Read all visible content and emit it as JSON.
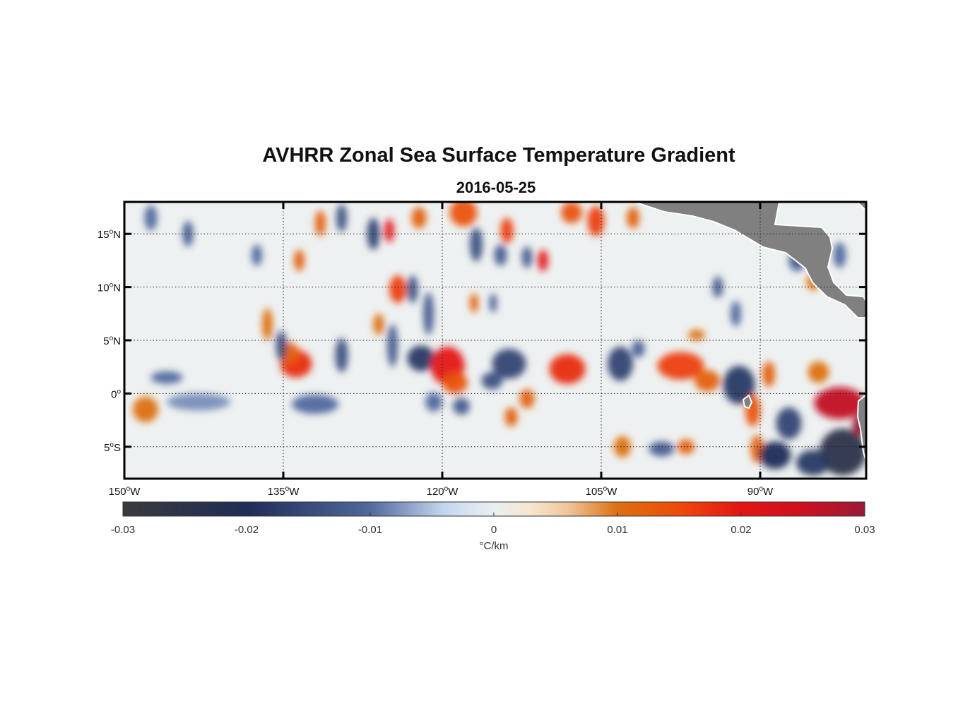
{
  "chart_data": {
    "type": "heatmap",
    "title": "AVHRR Zonal Sea Surface Temperature Gradient",
    "subtitle": "2016-05-25",
    "lon_range": [
      -150,
      -80
    ],
    "lat_range": [
      -8,
      18
    ],
    "x_ticks": [
      {
        "value": -150,
        "label": "150",
        "suffix": "W"
      },
      {
        "value": -135,
        "label": "135",
        "suffix": "W"
      },
      {
        "value": -120,
        "label": "120",
        "suffix": "W"
      },
      {
        "value": -105,
        "label": "105",
        "suffix": "W"
      },
      {
        "value": -90,
        "label": "90",
        "suffix": "W"
      }
    ],
    "y_ticks": [
      {
        "value": 15,
        "label": "15",
        "suffix": "N"
      },
      {
        "value": 10,
        "label": "10",
        "suffix": "N"
      },
      {
        "value": 5,
        "label": "5",
        "suffix": "N"
      },
      {
        "value": 0,
        "label": "0",
        "suffix": ""
      },
      {
        "value": -5,
        "label": "5",
        "suffix": "S"
      }
    ],
    "degree_symbol": "o",
    "grid": "dotted",
    "colorbar": {
      "range": [
        -0.03,
        0.03
      ],
      "ticks": [
        {
          "value": -0.03,
          "label": "-0.03"
        },
        {
          "value": -0.02,
          "label": "-0.02"
        },
        {
          "value": -0.01,
          "label": "-0.01"
        },
        {
          "value": 0,
          "label": "0"
        },
        {
          "value": 0.01,
          "label": "0.01"
        },
        {
          "value": 0.02,
          "label": "0.02"
        },
        {
          "value": 0.03,
          "label": "0.03"
        }
      ],
      "label": "°C/km",
      "stops": [
        {
          "value": -0.03,
          "color": "#3a3a3e"
        },
        {
          "value": -0.02,
          "color": "#1f2d56"
        },
        {
          "value": -0.01,
          "color": "#51699e"
        },
        {
          "value": -0.004,
          "color": "#c4d7ef"
        },
        {
          "value": 0,
          "color": "#eaf0f2"
        },
        {
          "value": 0.003,
          "color": "#f7e6cc"
        },
        {
          "value": 0.006,
          "color": "#f0c59a"
        },
        {
          "value": 0.01,
          "color": "#dc7010"
        },
        {
          "value": 0.015,
          "color": "#ee4a0a"
        },
        {
          "value": 0.02,
          "color": "#e41414"
        },
        {
          "value": 0.025,
          "color": "#cc1020"
        },
        {
          "value": 0.03,
          "color": "#9c1838"
        }
      ]
    },
    "features": [
      {
        "lon": -133.8,
        "lat": 2.8,
        "value": 0.018,
        "rlon": 1.5,
        "rlat": 1.3
      },
      {
        "lon": -134.5,
        "lat": 3.8,
        "value": 0.012,
        "rlon": 1.0,
        "rlat": 1.0
      },
      {
        "lon": -135.2,
        "lat": 4.5,
        "value": -0.014,
        "rlon": 0.5,
        "rlat": 1.4
      },
      {
        "lon": -129.5,
        "lat": 3.6,
        "value": -0.014,
        "rlon": 0.6,
        "rlat": 1.6
      },
      {
        "lon": -124.7,
        "lat": 4.5,
        "value": -0.012,
        "rlon": 0.5,
        "rlat": 2.0
      },
      {
        "lon": -122.0,
        "lat": 3.3,
        "value": -0.018,
        "rlon": 1.3,
        "rlat": 1.2
      },
      {
        "lon": -119.5,
        "lat": 2.6,
        "value": 0.02,
        "rlon": 1.6,
        "rlat": 1.8
      },
      {
        "lon": -118.8,
        "lat": 1.0,
        "value": 0.014,
        "rlon": 1.2,
        "rlat": 1.0
      },
      {
        "lon": -118.2,
        "lat": -1.2,
        "value": -0.012,
        "rlon": 0.8,
        "rlat": 0.8
      },
      {
        "lon": -113.7,
        "lat": 2.8,
        "value": -0.016,
        "rlon": 1.6,
        "rlat": 1.4
      },
      {
        "lon": -115.3,
        "lat": 1.2,
        "value": -0.014,
        "rlon": 1.0,
        "rlat": 0.8
      },
      {
        "lon": -108.2,
        "lat": 2.3,
        "value": 0.018,
        "rlon": 1.7,
        "rlat": 1.4
      },
      {
        "lon": -103.2,
        "lat": 2.8,
        "value": -0.016,
        "rlon": 1.2,
        "rlat": 1.6
      },
      {
        "lon": -101.5,
        "lat": 4.2,
        "value": -0.012,
        "rlon": 0.6,
        "rlat": 0.8
      },
      {
        "lon": -97.5,
        "lat": 2.6,
        "value": 0.016,
        "rlon": 2.2,
        "rlat": 1.3
      },
      {
        "lon": -95.0,
        "lat": 1.2,
        "value": 0.012,
        "rlon": 1.2,
        "rlat": 1.0
      },
      {
        "lon": -92.0,
        "lat": 0.8,
        "value": -0.018,
        "rlon": 1.5,
        "rlat": 1.8
      },
      {
        "lon": -90.7,
        "lat": -1.6,
        "value": 0.014,
        "rlon": 0.7,
        "rlat": 1.5
      },
      {
        "lon": -89.2,
        "lat": 1.8,
        "value": 0.012,
        "rlon": 0.6,
        "rlat": 1.2
      },
      {
        "lon": -90.3,
        "lat": -5.2,
        "value": 0.012,
        "rlon": 0.6,
        "rlat": 1.3
      },
      {
        "lon": -87.3,
        "lat": -2.8,
        "value": -0.016,
        "rlon": 1.2,
        "rlat": 1.5
      },
      {
        "lon": -88.6,
        "lat": -5.8,
        "value": -0.02,
        "rlon": 1.5,
        "rlat": 1.3
      },
      {
        "lon": -82.5,
        "lat": -0.9,
        "value": 0.026,
        "rlon": 2.4,
        "rlat": 1.5
      },
      {
        "lon": -82.2,
        "lat": -5.5,
        "value": -0.025,
        "rlon": 2.2,
        "rlat": 2.2
      },
      {
        "lon": -85.0,
        "lat": -6.5,
        "value": -0.018,
        "rlon": 1.6,
        "rlat": 1.2
      },
      {
        "lon": -84.5,
        "lat": 2.0,
        "value": 0.01,
        "rlon": 1.0,
        "rlat": 1.0
      },
      {
        "lon": -80.6,
        "lat": -3.0,
        "value": 0.03,
        "rlon": 0.7,
        "rlat": 1.0
      },
      {
        "lon": -125.0,
        "lat": 15.3,
        "value": 0.02,
        "rlon": 0.45,
        "rlat": 1.1
      },
      {
        "lon": -126.5,
        "lat": 15.0,
        "value": -0.016,
        "rlon": 0.6,
        "rlat": 1.5
      },
      {
        "lon": -124.2,
        "lat": 9.8,
        "value": 0.016,
        "rlon": 0.8,
        "rlat": 1.3
      },
      {
        "lon": -122.8,
        "lat": 9.8,
        "value": -0.014,
        "rlon": 0.5,
        "rlat": 1.3
      },
      {
        "lon": -122.2,
        "lat": 16.5,
        "value": 0.012,
        "rlon": 0.7,
        "rlat": 1.0
      },
      {
        "lon": -118.0,
        "lat": 17.0,
        "value": 0.014,
        "rlon": 1.3,
        "rlat": 1.3
      },
      {
        "lon": -113.9,
        "lat": 15.3,
        "value": 0.016,
        "rlon": 0.6,
        "rlat": 1.2
      },
      {
        "lon": -114.5,
        "lat": 13.0,
        "value": -0.012,
        "rlon": 0.6,
        "rlat": 1.0
      },
      {
        "lon": -112.0,
        "lat": 12.8,
        "value": -0.012,
        "rlon": 0.5,
        "rlat": 1.0
      },
      {
        "lon": -110.5,
        "lat": 12.5,
        "value": 0.02,
        "rlon": 0.5,
        "rlat": 1.0
      },
      {
        "lon": -116.8,
        "lat": 14.0,
        "value": -0.014,
        "rlon": 0.6,
        "rlat": 1.6
      },
      {
        "lon": -129.5,
        "lat": 16.5,
        "value": -0.014,
        "rlon": 0.5,
        "rlat": 1.3
      },
      {
        "lon": -131.5,
        "lat": 16.0,
        "value": 0.012,
        "rlon": 0.5,
        "rlat": 1.2
      },
      {
        "lon": -117.0,
        "lat": 8.5,
        "value": 0.012,
        "rlon": 0.4,
        "rlat": 0.9
      },
      {
        "lon": -115.2,
        "lat": 8.5,
        "value": -0.012,
        "rlon": 0.35,
        "rlat": 0.9
      },
      {
        "lon": -121.3,
        "lat": 7.5,
        "value": -0.012,
        "rlon": 0.5,
        "rlat": 2.0
      },
      {
        "lon": -107.8,
        "lat": 17.0,
        "value": 0.014,
        "rlon": 1.0,
        "rlat": 1.0
      },
      {
        "lon": -105.5,
        "lat": 16.2,
        "value": 0.016,
        "rlon": 0.8,
        "rlat": 1.4
      },
      {
        "lon": -102.0,
        "lat": 16.5,
        "value": 0.012,
        "rlon": 0.6,
        "rlat": 1.0
      },
      {
        "lon": -144.0,
        "lat": 15.0,
        "value": -0.012,
        "rlon": 0.5,
        "rlat": 1.2
      },
      {
        "lon": -147.5,
        "lat": 16.5,
        "value": -0.01,
        "rlon": 0.6,
        "rlat": 1.2
      },
      {
        "lon": -148.0,
        "lat": -1.5,
        "value": 0.01,
        "rlon": 1.2,
        "rlat": 1.2
      },
      {
        "lon": -143.0,
        "lat": -0.8,
        "value": -0.008,
        "rlon": 3.0,
        "rlat": 0.8
      },
      {
        "lon": -132.0,
        "lat": -1.0,
        "value": -0.01,
        "rlon": 2.2,
        "rlat": 0.9
      },
      {
        "lon": -120.8,
        "lat": -0.8,
        "value": -0.01,
        "rlon": 0.8,
        "rlat": 0.9
      },
      {
        "lon": -112.0,
        "lat": -0.5,
        "value": 0.012,
        "rlon": 0.7,
        "rlat": 0.9
      },
      {
        "lon": -113.5,
        "lat": -2.2,
        "value": 0.012,
        "rlon": 0.6,
        "rlat": 0.9
      },
      {
        "lon": -136.5,
        "lat": 6.5,
        "value": 0.01,
        "rlon": 0.5,
        "rlat": 1.5
      },
      {
        "lon": -137.5,
        "lat": 13.0,
        "value": -0.01,
        "rlon": 0.5,
        "rlat": 1.0
      },
      {
        "lon": -133.5,
        "lat": 12.5,
        "value": 0.012,
        "rlon": 0.5,
        "rlat": 1.0
      },
      {
        "lon": -94.0,
        "lat": 10.0,
        "value": -0.012,
        "rlon": 0.5,
        "rlat": 1.0
      },
      {
        "lon": -92.3,
        "lat": 7.5,
        "value": -0.01,
        "rlon": 0.5,
        "rlat": 1.2
      },
      {
        "lon": -99.3,
        "lat": -5.2,
        "value": -0.012,
        "rlon": 1.2,
        "rlat": 0.7
      },
      {
        "lon": -97.0,
        "lat": -5.0,
        "value": 0.012,
        "rlon": 0.8,
        "rlat": 0.7
      },
      {
        "lon": -103.0,
        "lat": -5.0,
        "value": 0.01,
        "rlon": 0.8,
        "rlat": 1.0
      },
      {
        "lon": -146.0,
        "lat": 1.5,
        "value": -0.01,
        "rlon": 1.5,
        "rlat": 0.6
      },
      {
        "lon": -126.0,
        "lat": 6.5,
        "value": 0.01,
        "rlon": 0.5,
        "rlat": 1.0
      },
      {
        "lon": -86.5,
        "lat": 12.5,
        "value": -0.012,
        "rlon": 0.8,
        "rlat": 1.0
      },
      {
        "lon": -85.0,
        "lat": 10.5,
        "value": 0.01,
        "rlon": 0.6,
        "rlat": 0.8
      },
      {
        "lon": -82.5,
        "lat": 13.0,
        "value": -0.01,
        "rlon": 0.6,
        "rlat": 1.2
      },
      {
        "lon": -96.0,
        "lat": 5.5,
        "value": 0.01,
        "rlon": 0.8,
        "rlat": 0.5
      }
    ]
  }
}
